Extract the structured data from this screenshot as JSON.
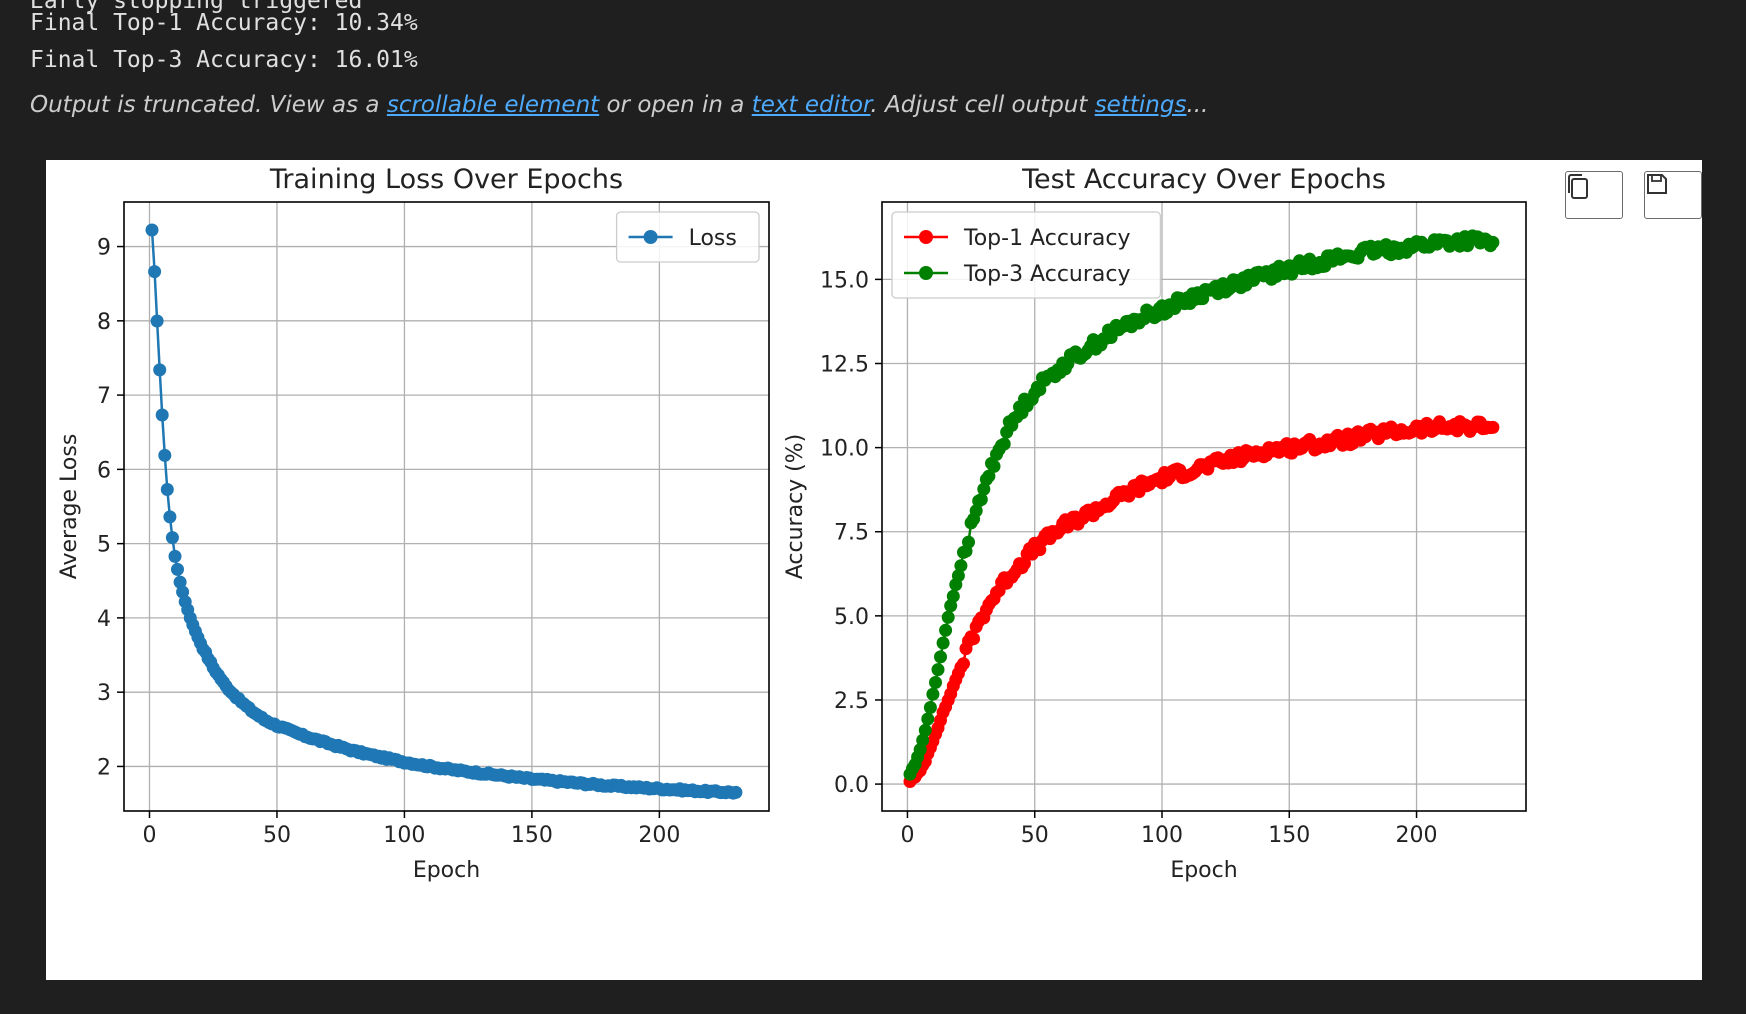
{
  "output": {
    "line0": "Early stopping triggered",
    "line1": "Final Top-1 Accuracy: 10.34%",
    "line2": "Final Top-3 Accuracy: 16.01%"
  },
  "truncation": {
    "prefix": "Output is truncated. View as a ",
    "link1": "scrollable element",
    "mid1": " or open in a ",
    "link2": "text editor",
    "mid2": ". Adjust cell output ",
    "link3": "settings",
    "suffix": "..."
  },
  "toolbar": {
    "copy_icon": "copy-icon",
    "save_icon": "save-icon"
  },
  "chart_data": [
    {
      "type": "line",
      "title": "Training Loss Over Epochs",
      "xlabel": "Epoch",
      "ylabel": "Average Loss",
      "xlim": [
        -10,
        243
      ],
      "ylim": [
        1.4,
        9.6
      ],
      "xticks": [
        "0",
        "50",
        "100",
        "150",
        "200"
      ],
      "yticks": [
        "2",
        "3",
        "4",
        "5",
        "6",
        "7",
        "8",
        "9"
      ],
      "xtick_values": [
        0,
        50,
        100,
        150,
        200
      ],
      "ytick_values": [
        2,
        3,
        4,
        5,
        6,
        7,
        8,
        9
      ],
      "grid": true,
      "legend": "top-right",
      "series": [
        {
          "name": "Loss",
          "color": "#1f77b4",
          "x": [
            1,
            2,
            3,
            4,
            5,
            6,
            7,
            8,
            9,
            10,
            12,
            14,
            16,
            18,
            20,
            25,
            30,
            35,
            40,
            45,
            50,
            60,
            70,
            80,
            90,
            100,
            110,
            120,
            130,
            140,
            150,
            160,
            170,
            180,
            190,
            200,
            210,
            220,
            230
          ],
          "y": [
            9.22,
            8.66,
            8.0,
            7.34,
            6.73,
            6.19,
            5.73,
            5.36,
            5.08,
            4.83,
            4.48,
            4.22,
            4.0,
            3.82,
            3.66,
            3.33,
            3.08,
            2.9,
            2.75,
            2.63,
            2.55,
            2.42,
            2.31,
            2.21,
            2.13,
            2.06,
            2.0,
            1.95,
            1.91,
            1.87,
            1.83,
            1.8,
            1.77,
            1.74,
            1.72,
            1.7,
            1.68,
            1.66,
            1.65
          ]
        }
      ]
    },
    {
      "type": "line",
      "title": "Test Accuracy Over Epochs",
      "xlabel": "Epoch",
      "ylabel": "Accuracy (%)",
      "xlim": [
        -10,
        243
      ],
      "ylim": [
        -0.8,
        17.3
      ],
      "xticks": [
        "0",
        "50",
        "100",
        "150",
        "200"
      ],
      "yticks": [
        "0.0",
        "2.5",
        "5.0",
        "7.5",
        "10.0",
        "12.5",
        "15.0"
      ],
      "xtick_values": [
        0,
        50,
        100,
        150,
        200
      ],
      "ytick_values": [
        0,
        2.5,
        5.0,
        7.5,
        10.0,
        12.5,
        15.0
      ],
      "grid": true,
      "legend": "top-left",
      "series": [
        {
          "name": "Top-1 Accuracy",
          "color": "#ff0000",
          "x": [
            1,
            3,
            5,
            7,
            9,
            12,
            15,
            18,
            21,
            25,
            30,
            35,
            40,
            45,
            50,
            60,
            70,
            80,
            90,
            100,
            110,
            120,
            130,
            140,
            150,
            160,
            170,
            180,
            190,
            200,
            210,
            220,
            230
          ],
          "y": [
            0.1,
            0.2,
            0.4,
            0.7,
            1.1,
            1.7,
            2.3,
            2.9,
            3.5,
            4.3,
            5.1,
            5.7,
            6.2,
            6.6,
            7.0,
            7.6,
            8.0,
            8.4,
            8.8,
            9.1,
            9.3,
            9.5,
            9.7,
            9.9,
            10.0,
            10.1,
            10.2,
            10.35,
            10.45,
            10.55,
            10.6,
            10.65,
            10.6
          ]
        },
        {
          "name": "Top-3 Accuracy",
          "color": "#008000",
          "x": [
            1,
            3,
            5,
            7,
            9,
            12,
            15,
            18,
            21,
            25,
            30,
            35,
            40,
            45,
            50,
            60,
            70,
            80,
            90,
            100,
            110,
            120,
            130,
            140,
            150,
            160,
            170,
            180,
            190,
            200,
            210,
            220,
            230
          ],
          "y": [
            0.3,
            0.6,
            1.0,
            1.6,
            2.3,
            3.4,
            4.6,
            5.6,
            6.5,
            7.6,
            8.8,
            9.8,
            10.6,
            11.2,
            11.7,
            12.4,
            12.9,
            13.4,
            13.8,
            14.1,
            14.4,
            14.7,
            14.9,
            15.1,
            15.3,
            15.5,
            15.65,
            15.8,
            15.9,
            16.0,
            16.1,
            16.15,
            16.1
          ]
        }
      ]
    }
  ]
}
